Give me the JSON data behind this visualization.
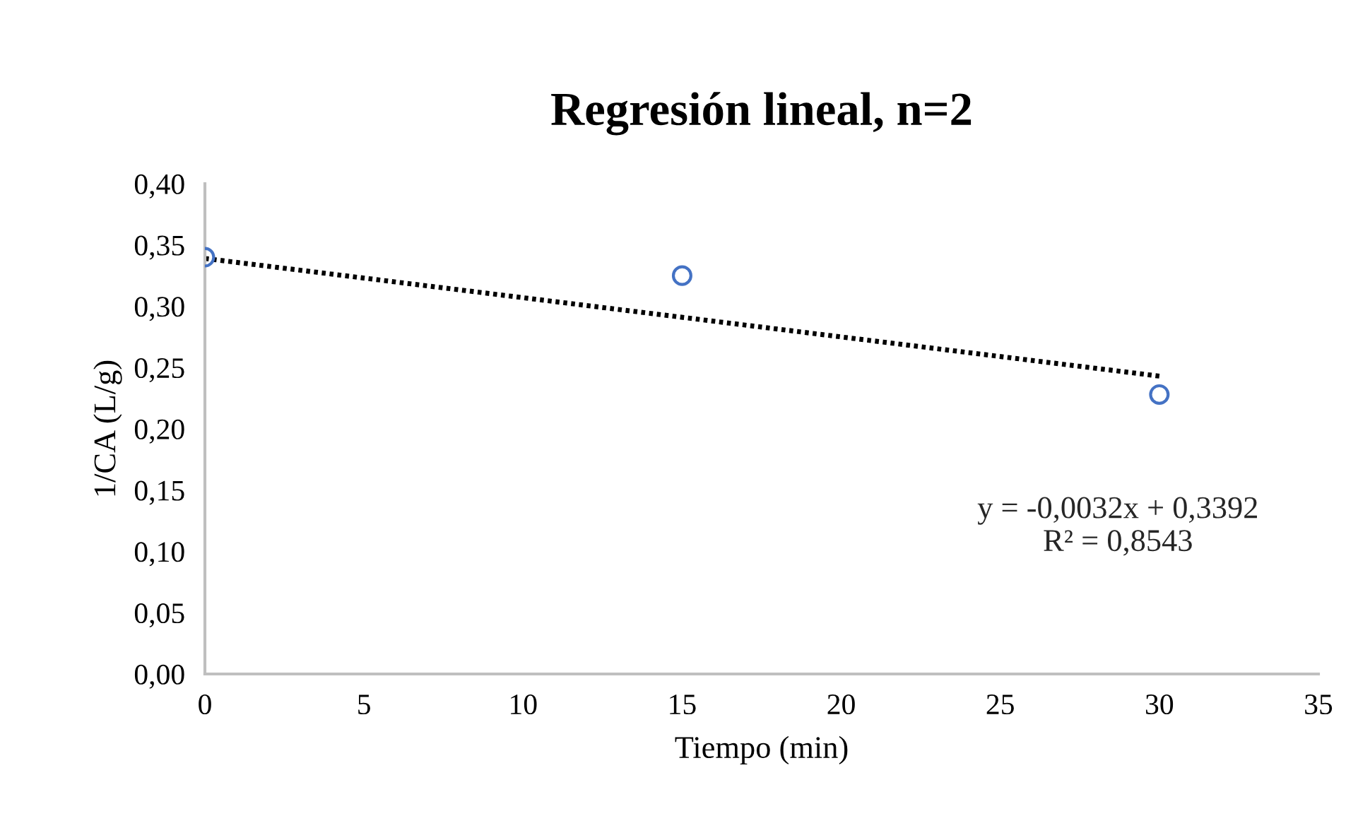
{
  "chart_data": {
    "type": "scatter",
    "title": "Regresión lineal, n=2",
    "xlabel": "Tiempo (min)",
    "ylabel": "1/CA (L/g)",
    "series": [
      {
        "color": "#4472c4",
        "x": [
          0,
          15,
          30
        ],
        "values": [
          0.34,
          0.325,
          0.228
        ],
        "marker": "circle"
      },
      {
        "type": "line",
        "color": "#000000",
        "x": [
          0,
          30
        ],
        "values": [
          0.339,
          0.243
        ],
        "line_style": "dotted",
        "marker": "none"
      }
    ],
    "annotations": [
      "y = -0,0032x + 0,3392\nR² = 0,8543"
    ],
    "xlim": [
      0,
      35
    ],
    "xticks": [
      0,
      5,
      10,
      15,
      20,
      25,
      30,
      35
    ],
    "ylim": [
      0,
      0.4
    ],
    "yticks": [
      {
        "value": 0,
        "label": "0,00"
      },
      {
        "value": 0.05,
        "label": "0,05"
      },
      {
        "value": 0.1,
        "label": "0,10"
      },
      {
        "value": 0.15,
        "label": "0,15"
      },
      {
        "value": 0.2,
        "label": "0,20"
      },
      {
        "value": 0.25,
        "label": "0,25"
      },
      {
        "value": 0.3,
        "label": "0,30"
      },
      {
        "value": 0.35,
        "label": "0,35"
      },
      {
        "value": 0.4,
        "label": "0,40"
      }
    ],
    "grid": false,
    "legend": false
  }
}
